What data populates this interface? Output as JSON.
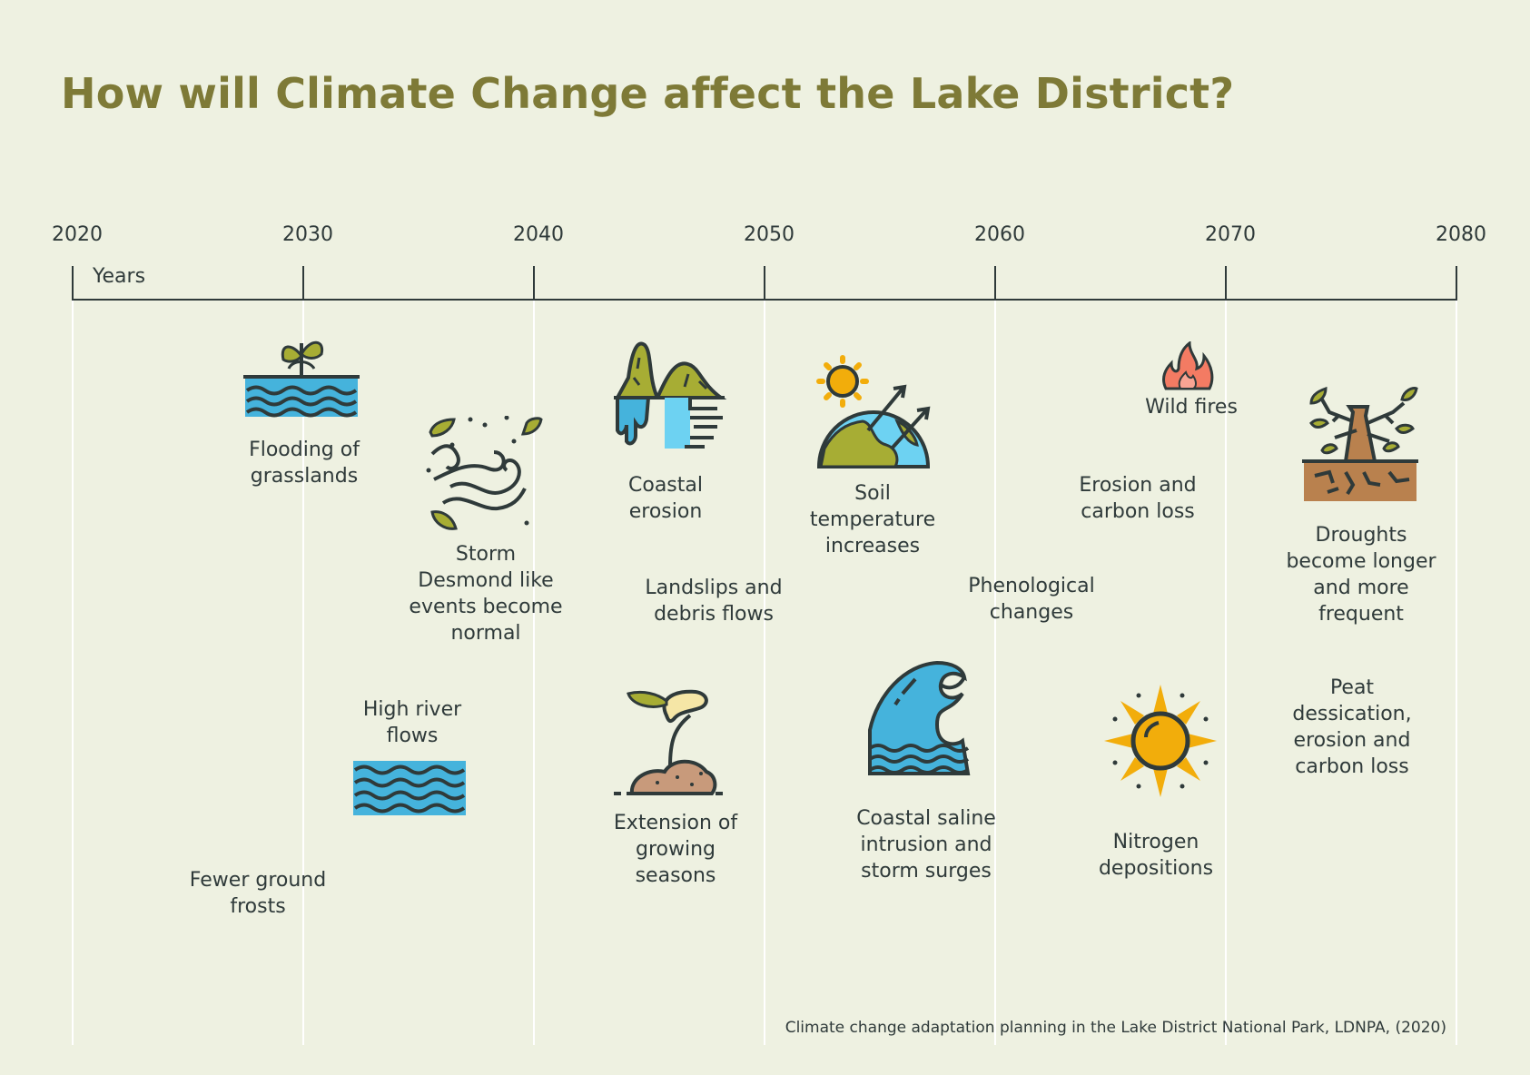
{
  "title": "How will Climate Change affect the Lake District?",
  "axis": {
    "unit_label": "Years",
    "years": [
      "2020",
      "2030",
      "2040",
      "2050",
      "2060",
      "2070",
      "2080"
    ]
  },
  "events": [
    {
      "id": "flooding",
      "label": [
        "Flooding of",
        "grasslands"
      ],
      "icon": "sprout-water-icon"
    },
    {
      "id": "storm",
      "label": [
        "Storm",
        "Desmond like",
        "events become",
        "normal"
      ],
      "icon": "wind-icon"
    },
    {
      "id": "coastal-erosion",
      "label": [
        "Coastal",
        "erosion"
      ],
      "icon": "cliff-erosion-icon"
    },
    {
      "id": "soil-temp",
      "label": [
        "Soil",
        "temperature",
        "increases"
      ],
      "icon": "globe-sun-icon"
    },
    {
      "id": "wild-fires",
      "label": [
        "Wild fires"
      ],
      "icon": "fire-icon"
    },
    {
      "id": "erosion-carbon",
      "label": [
        "Erosion and",
        "carbon loss"
      ],
      "icon": ""
    },
    {
      "id": "droughts",
      "label": [
        "Droughts",
        "become longer",
        "and more",
        "frequent"
      ],
      "icon": "dead-tree-icon"
    },
    {
      "id": "landslips",
      "label": [
        "Landslips and",
        "debris flows"
      ],
      "icon": ""
    },
    {
      "id": "phenological",
      "label": [
        "Phenological",
        "changes"
      ],
      "icon": ""
    },
    {
      "id": "high-river",
      "label": [
        "High river",
        "flows"
      ],
      "icon": "waves-icon"
    },
    {
      "id": "growing-seasons",
      "label": [
        "Extension of",
        "growing",
        "seasons"
      ],
      "icon": "seedling-icon"
    },
    {
      "id": "saline",
      "label": [
        "Coastal saline",
        "intrusion and",
        "storm surges"
      ],
      "icon": "wave-surge-icon"
    },
    {
      "id": "nitrogen",
      "label": [
        "Nitrogen",
        "depositions"
      ],
      "icon": "sun-icon"
    },
    {
      "id": "peat",
      "label": [
        "Peat",
        "dessication,",
        "erosion and",
        "carbon loss"
      ],
      "icon": ""
    },
    {
      "id": "frosts",
      "label": [
        "Fewer ground",
        "frosts"
      ],
      "icon": ""
    }
  ],
  "source": "Climate change adaptation planning in the Lake District National Park, LDNPA, (2020)",
  "colors": {
    "background": "#eef1e1",
    "title": "#7e7a37",
    "ink": "#2f3a3a",
    "water": "#45b3dc",
    "olive": "#a7ad34",
    "fire": "#f37b63",
    "sun": "#f2ad0b",
    "soil": "#b9814e",
    "sand": "#c89a7b",
    "cream": "#f5e6a6"
  }
}
